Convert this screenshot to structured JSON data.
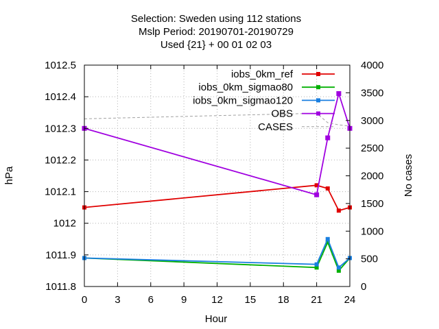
{
  "chart_data": {
    "type": "line",
    "title_lines": [
      "Selection: Sweden using   112 stations",
      "Mslp   Period: 20190701-20190729",
      "Used {21} + 00 01 02 03"
    ],
    "xlabel": "Hour",
    "ylabel": "hPa",
    "y2label": "No cases",
    "xlim": [
      0,
      24
    ],
    "ylim": [
      1011.8,
      1012.5
    ],
    "y2lim": [
      0,
      4000
    ],
    "xticks": [
      "0",
      "3",
      "6",
      "9",
      "12",
      "15",
      "18",
      "21",
      "24"
    ],
    "yticks": [
      "1011.8",
      "1011.9",
      "1012",
      "1012.1",
      "1012.2",
      "1012.3",
      "1012.4",
      "1012.5"
    ],
    "y2ticks": [
      "0",
      "500",
      "1000",
      "1500",
      "2000",
      "2500",
      "3000",
      "3500",
      "4000"
    ],
    "grid": true,
    "legend_position": "top-right",
    "series": [
      {
        "name": "iobs_0km_ref",
        "color": "#e00000",
        "axis": "y1",
        "marker": "plus",
        "x": [
          0,
          21,
          22,
          23,
          24
        ],
        "y": [
          1012.05,
          1012.12,
          1012.11,
          1012.04,
          1012.05
        ]
      },
      {
        "name": "iobs_0km_sigmao80",
        "color": "#00b000",
        "axis": "y1",
        "marker": "plus",
        "x": [
          0,
          21,
          22,
          23,
          24
        ],
        "y": [
          1011.89,
          1011.86,
          1011.94,
          1011.85,
          1011.89
        ]
      },
      {
        "name": "iobs_0km_sigmao120",
        "color": "#1a7fe0",
        "axis": "y1",
        "marker": "plus",
        "x": [
          0,
          21,
          22,
          23,
          24
        ],
        "y": [
          1011.89,
          1011.87,
          1011.95,
          1011.86,
          1011.89
        ]
      },
      {
        "name": "OBS",
        "color": "#a000e0",
        "axis": "y1",
        "marker": "square",
        "x": [
          0,
          21,
          22,
          23,
          24
        ],
        "y": [
          1012.3,
          1012.09,
          1012.27,
          1012.41,
          1012.3
        ]
      },
      {
        "name": "CASES",
        "color": "#a0a0a0",
        "axis": "y2",
        "marker": "none",
        "dashed": true,
        "x": [
          0,
          21,
          22,
          23,
          24
        ],
        "y": [
          3030,
          3130,
          2960,
          2920,
          2900
        ]
      }
    ]
  }
}
